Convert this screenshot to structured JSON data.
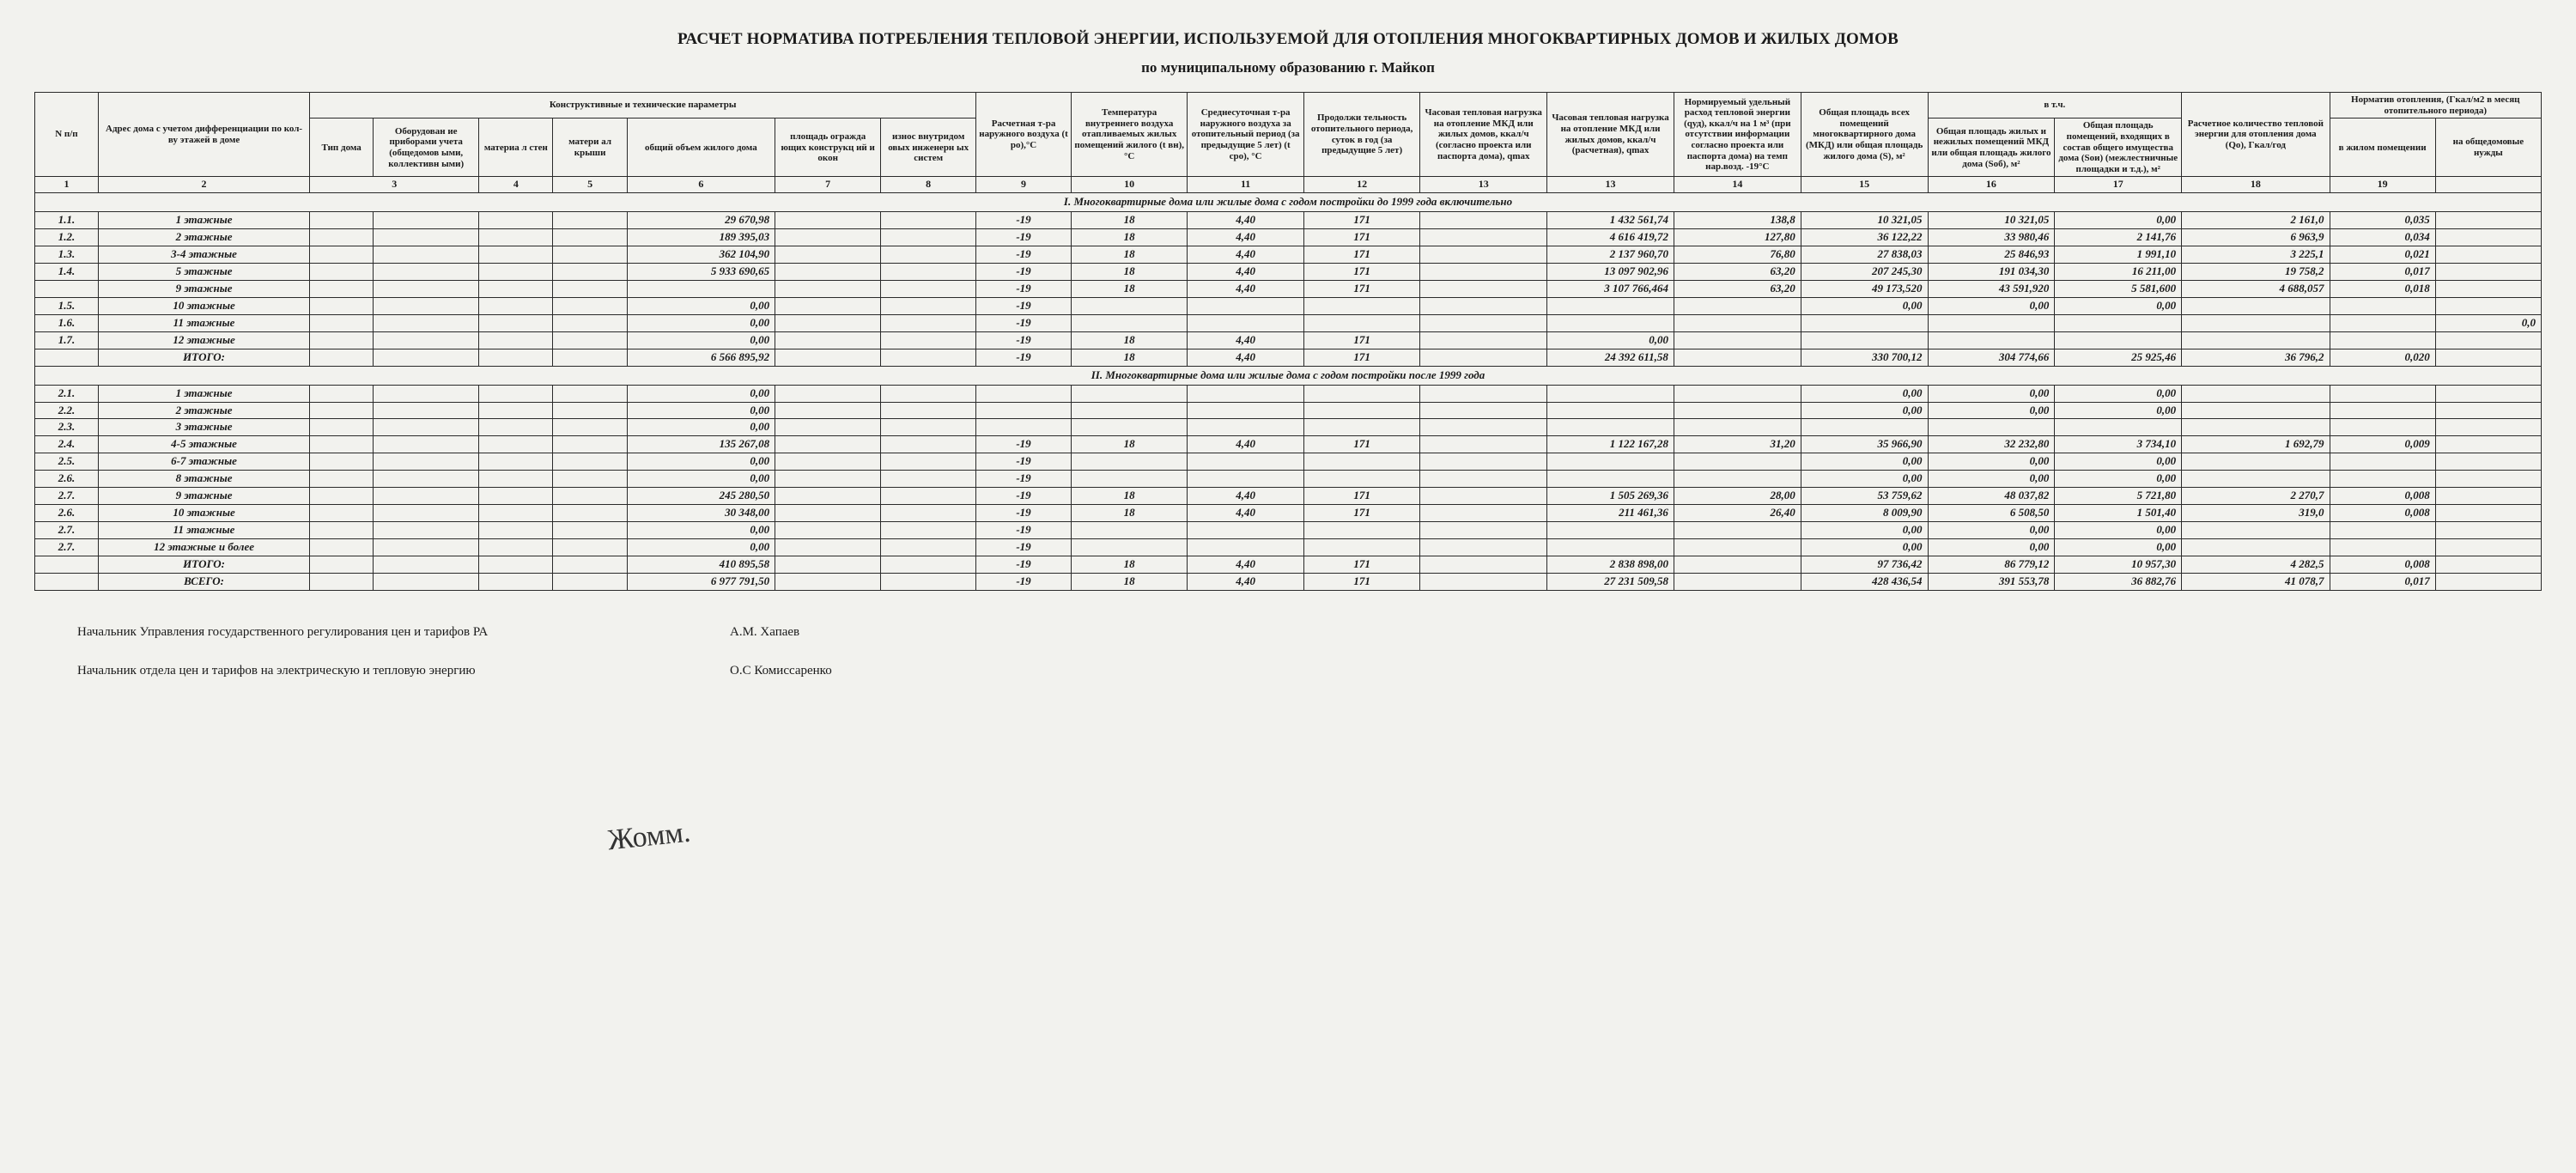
{
  "title": "РАСЧЕТ  НОРМАТИВА ПОТРЕБЛЕНИЯ ТЕПЛОВОЙ ЭНЕРГИИ, ИСПОЛЬЗУЕМОЙ ДЛЯ ОТОПЛЕНИЯ МНОГОКВАРТИРНЫХ ДОМОВ И ЖИЛЫХ ДОМОВ",
  "subtitle": "по муниципальному образованию г. Майкоп",
  "headers": {
    "group_constr": "Конструктивные и технические параметры",
    "group_vtch": "в т.ч.",
    "group_norm": "Норматив отопления, (Гкал/м2 в месяц отопительного периода)",
    "h1": "N п/п",
    "h2": "Адрес дома с учетом дифференциации по кол-ву этажей в доме",
    "h3": "Тип дома",
    "h4": "Оборудован ие приборами учета (общедомов ыми, коллективн ыми)",
    "h5": "материа л стен",
    "h6": "матери ал крыши",
    "h7": "общий объем жилого дома",
    "h8": "площадь огражда ющих конструкц ий и окон",
    "h9": "износ внутридом овых инженерн ых систем",
    "h10": "Расчетная т-ра наружного воздуха (t ро),°С",
    "h11": "Температура внутреннего воздуха отапливаемых жилых помещений жилого (t вн), °С",
    "h12": "Среднесуточная т-ра наружного воздуха за отопительный период (за предыдущие 5 лет) (t сро), °С",
    "h13": "Продолжи тельность отопительного периода, суток в год (за предыдущие 5 лет)",
    "h14": "Часовая тепловая нагрузка на отопление МКД или жилых домов, ккал/ч (согласно проекта или паспорта дома), qmax",
    "h15": "Часовая тепловая нагрузка на отопление МКД или жилых домов, ккал/ч  (расчетная), qmax",
    "h16": "Нормируемый удельный расход тепловой энергии (qуд), ккал/ч на 1 м³ (при отсутствии информации согласно проекта или паспорта дома) на темп нар.возд.  -19°С",
    "h17": "Общая площадь всех помещений многоквартирного дома (МКД) или общая площадь жилого дома (S), м²",
    "h18": "Общая площадь жилых и нежилых помещений МКД или общая площадь жилого дома (Sоб), м²",
    "h19": "Общая площадь помещений, входящих в состав общего имущества дома (Sои) (межлестничные площадки и т.д.), м²",
    "h20": "Расчетное количество тепловой энергии для отопления дома (Qо), Гкал/год",
    "h21": "в жилом помещении",
    "h22": "на общедомовые нужды"
  },
  "colnums": [
    "1",
    "2",
    "3",
    "4",
    "5",
    "6",
    "7",
    "8",
    "9",
    "10",
    "11",
    "12",
    "13",
    "13",
    "14",
    "15",
    "16",
    "17",
    "18",
    "19"
  ],
  "section1": "I. Многоквартирные дома или жилые дома с годом постройки до 1999 года включительно",
  "section2": "II. Многоквартирные дома или жилые дома с годом постройки после 1999 года",
  "rows1": [
    {
      "idx": "1.1.",
      "name": "1 этажные",
      "vol": "29 670,98",
      "t": "-19",
      "tin": "18",
      "tav": "4,40",
      "days": "171",
      "qmax": "1 432 561,74",
      "qud": "138,8",
      "s": "10 321,05",
      "sob": "10 321,05",
      "soi": "0,00",
      "qo": "2 161,0",
      "n1": "0,035",
      "n2": ""
    },
    {
      "idx": "1.2.",
      "name": "2 этажные",
      "vol": "189 395,03",
      "t": "-19",
      "tin": "18",
      "tav": "4,40",
      "days": "171",
      "qmax": "4 616 419,72",
      "qud": "127,80",
      "s": "36 122,22",
      "sob": "33 980,46",
      "soi": "2 141,76",
      "qo": "6 963,9",
      "n1": "0,034",
      "n2": ""
    },
    {
      "idx": "1.3.",
      "name": "3-4 этажные",
      "vol": "362 104,90",
      "t": "-19",
      "tin": "18",
      "tav": "4,40",
      "days": "171",
      "qmax": "2 137 960,70",
      "qud": "76,80",
      "s": "27 838,03",
      "sob": "25 846,93",
      "soi": "1 991,10",
      "qo": "3 225,1",
      "n1": "0,021",
      "n2": ""
    },
    {
      "idx": "1.4.",
      "name": "5 этажные",
      "vol": "5 933 690,65",
      "t": "-19",
      "tin": "18",
      "tav": "4,40",
      "days": "171",
      "qmax": "13 097 902,96",
      "qud": "63,20",
      "s": "207 245,30",
      "sob": "191 034,30",
      "soi": "16 211,00",
      "qo": "19 758,2",
      "n1": "0,017",
      "n2": ""
    },
    {
      "idx": "",
      "name": "9 этажные",
      "vol": "",
      "t": "-19",
      "tin": "18",
      "tav": "4,40",
      "days": "171",
      "qmax": "3 107 766,464",
      "qud": "63,20",
      "s": "49 173,520",
      "sob": "43 591,920",
      "soi": "5 581,600",
      "qo": "4 688,057",
      "n1": "0,018",
      "n2": ""
    },
    {
      "idx": "1.5.",
      "name": "10 этажные",
      "vol": "0,00",
      "t": "-19",
      "tin": "",
      "tav": "",
      "days": "",
      "qmax": "",
      "qud": "",
      "s": "0,00",
      "sob": "0,00",
      "soi": "0,00",
      "qo": "",
      "n1": "",
      "n2": ""
    },
    {
      "idx": "1.6.",
      "name": "11 этажные",
      "vol": "0,00",
      "t": "-19",
      "tin": "",
      "tav": "",
      "days": "",
      "qmax": "",
      "qud": "",
      "s": "",
      "sob": "",
      "soi": "",
      "qo": "",
      "n1": "",
      "n2": "0,0"
    },
    {
      "idx": "1.7.",
      "name": "12 этажные",
      "vol": "0,00",
      "t": "-19",
      "tin": "18",
      "tav": "4,40",
      "days": "171",
      "qmax": "0,00",
      "qud": "",
      "s": "",
      "sob": "",
      "soi": "",
      "qo": "",
      "n1": "",
      "n2": ""
    }
  ],
  "total1": {
    "name": "ИТОГО:",
    "vol": "6 566 895,92",
    "t": "-19",
    "tin": "18",
    "tav": "4,40",
    "days": "171",
    "qmax": "24 392 611,58",
    "s": "330 700,12",
    "sob": "304 774,66",
    "soi": "25 925,46",
    "qo": "36 796,2",
    "n1": "0,020"
  },
  "rows2": [
    {
      "idx": "2.1.",
      "name": "1 этажные",
      "vol": "0,00",
      "t": "",
      "tin": "",
      "tav": "",
      "days": "",
      "qmax": "",
      "qud": "",
      "s": "0,00",
      "sob": "0,00",
      "soi": "0,00",
      "qo": "",
      "n1": "",
      "n2": ""
    },
    {
      "idx": "2.2.",
      "name": "2 этажные",
      "vol": "0,00",
      "t": "",
      "tin": "",
      "tav": "",
      "days": "",
      "qmax": "",
      "qud": "",
      "s": "0,00",
      "sob": "0,00",
      "soi": "0,00",
      "qo": "",
      "n1": "",
      "n2": ""
    },
    {
      "idx": "2.3.",
      "name": "3 этажные",
      "vol": "0,00",
      "t": "",
      "tin": "",
      "tav": "",
      "days": "",
      "qmax": "",
      "qud": "",
      "s": "",
      "sob": "",
      "soi": "",
      "qo": "",
      "n1": "",
      "n2": ""
    },
    {
      "idx": "2.4.",
      "name": "4-5 этажные",
      "vol": "135 267,08",
      "t": "-19",
      "tin": "18",
      "tav": "4,40",
      "days": "171",
      "qmax": "1 122 167,28",
      "qud": "31,20",
      "s": "35 966,90",
      "sob": "32 232,80",
      "soi": "3 734,10",
      "qo": "1 692,79",
      "n1": "0,009",
      "n2": ""
    },
    {
      "idx": "2.5.",
      "name": "6-7 этажные",
      "vol": "0,00",
      "t": "-19",
      "tin": "",
      "tav": "",
      "days": "",
      "qmax": "",
      "qud": "",
      "s": "0,00",
      "sob": "0,00",
      "soi": "0,00",
      "qo": "",
      "n1": "",
      "n2": ""
    },
    {
      "idx": "2.6.",
      "name": "8 этажные",
      "vol": "0,00",
      "t": "-19",
      "tin": "",
      "tav": "",
      "days": "",
      "qmax": "",
      "qud": "",
      "s": "0,00",
      "sob": "0,00",
      "soi": "0,00",
      "qo": "",
      "n1": "",
      "n2": ""
    },
    {
      "idx": "2.7.",
      "name": "9 этажные",
      "vol": "245 280,50",
      "t": "-19",
      "tin": "18",
      "tav": "4,40",
      "days": "171",
      "qmax": "1 505 269,36",
      "qud": "28,00",
      "s": "53 759,62",
      "sob": "48 037,82",
      "soi": "5 721,80",
      "qo": "2 270,7",
      "n1": "0,008",
      "n2": ""
    },
    {
      "idx": "2.6.",
      "name": "10 этажные",
      "vol": "30 348,00",
      "t": "-19",
      "tin": "18",
      "tav": "4,40",
      "days": "171",
      "qmax": "211 461,36",
      "qud": "26,40",
      "s": "8 009,90",
      "sob": "6 508,50",
      "soi": "1 501,40",
      "qo": "319,0",
      "n1": "0,008",
      "n2": ""
    },
    {
      "idx": "2.7.",
      "name": "11 этажные",
      "vol": "0,00",
      "t": "-19",
      "tin": "",
      "tav": "",
      "days": "",
      "qmax": "",
      "qud": "",
      "s": "0,00",
      "sob": "0,00",
      "soi": "0,00",
      "qo": "",
      "n1": "",
      "n2": ""
    },
    {
      "idx": "2.7.",
      "name": "12 этажные и более",
      "vol": "0,00",
      "t": "-19",
      "tin": "",
      "tav": "",
      "days": "",
      "qmax": "",
      "qud": "",
      "s": "0,00",
      "sob": "0,00",
      "soi": "0,00",
      "qo": "",
      "n1": "",
      "n2": ""
    }
  ],
  "total2": {
    "name": "ИТОГО:",
    "vol": "410 895,58",
    "t": "-19",
    "tin": "18",
    "tav": "4,40",
    "days": "171",
    "qmax": "2 838 898,00",
    "s": "97 736,42",
    "sob": "86 779,12",
    "soi": "10 957,30",
    "qo": "4 282,5",
    "n1": "0,008"
  },
  "grand": {
    "name": "ВСЕГО:",
    "vol": "6 977 791,50",
    "t": "-19",
    "tin": "18",
    "tav": "4,40",
    "days": "171",
    "qmax": "27 231 509,58",
    "s": "428 436,54",
    "sob": "391 553,78",
    "soi": "36 882,76",
    "qo": "41 078,7",
    "n1": "0,017"
  },
  "sign": {
    "role1": "Начальник Управления государственного регулирования цен и тарифов РА",
    "name1": "А.М. Хапаев",
    "role2": "Начальник отдела цен и тарифов на электрическую и тепловую энергию",
    "name2": "О.С Комиссаренко",
    "scribble": "Жомм."
  }
}
